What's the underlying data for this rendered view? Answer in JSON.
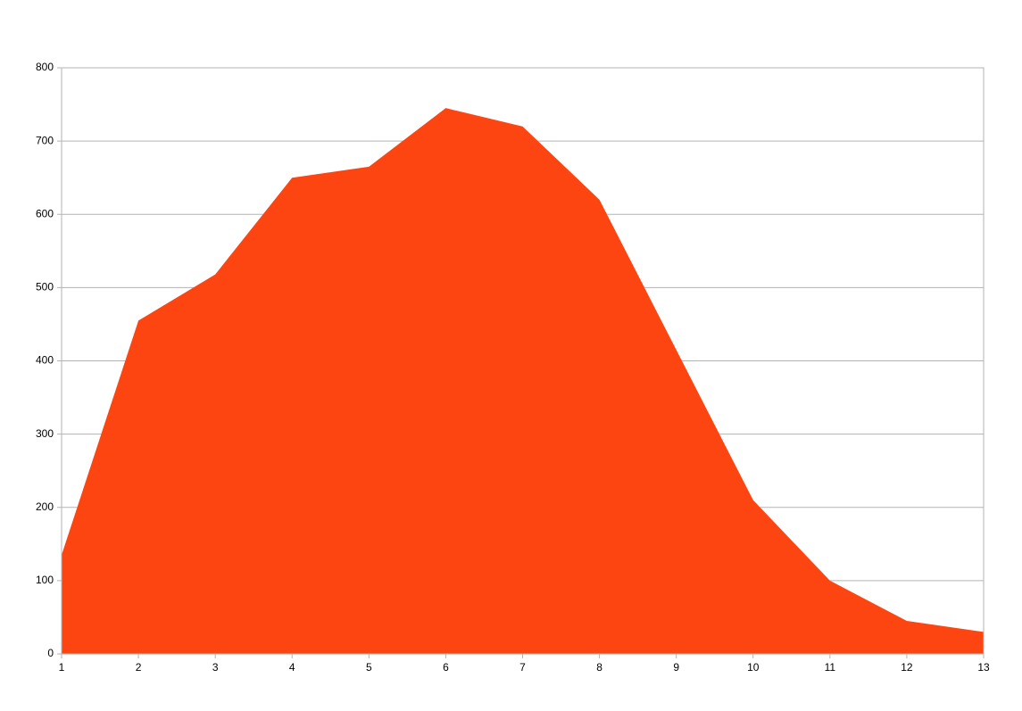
{
  "chart_data": {
    "type": "area",
    "x": [
      1,
      2,
      3,
      4,
      5,
      6,
      7,
      8,
      9,
      10,
      11,
      12,
      13
    ],
    "values": [
      135,
      455,
      518,
      650,
      665,
      745,
      720,
      620,
      415,
      210,
      100,
      45,
      30
    ],
    "color": "#fd4511",
    "xlim": [
      1,
      13
    ],
    "xticks": [
      1,
      2,
      3,
      4,
      5,
      6,
      7,
      8,
      9,
      10,
      11,
      12,
      13
    ],
    "ylim": [
      0,
      800
    ],
    "yticks": [
      0,
      100,
      200,
      300,
      400,
      500,
      600,
      700,
      800
    ],
    "grid": true
  }
}
